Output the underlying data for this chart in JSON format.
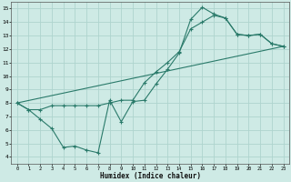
{
  "xlabel": "Humidex (Indice chaleur)",
  "xlim": [
    -0.5,
    23.5
  ],
  "ylim": [
    3.5,
    15.5
  ],
  "xticks": [
    0,
    1,
    2,
    3,
    4,
    5,
    6,
    7,
    8,
    9,
    10,
    11,
    12,
    13,
    14,
    15,
    16,
    17,
    18,
    19,
    20,
    21,
    22,
    23
  ],
  "yticks": [
    4,
    5,
    6,
    7,
    8,
    9,
    10,
    11,
    12,
    13,
    14,
    15
  ],
  "bg_color": "#ceeae5",
  "grid_color": "#aed4ce",
  "line_color": "#2a7a6a",
  "line1_x": [
    0,
    1,
    2,
    3,
    4,
    5,
    6,
    7,
    8,
    9,
    10,
    11,
    12,
    13,
    14,
    15,
    16,
    17,
    18,
    19,
    20,
    21,
    22,
    23
  ],
  "line1_y": [
    8.0,
    7.5,
    6.8,
    6.1,
    4.7,
    4.8,
    4.5,
    4.3,
    8.2,
    6.6,
    8.1,
    8.2,
    9.4,
    10.5,
    11.7,
    14.2,
    15.1,
    14.6,
    14.3,
    13.1,
    13.0,
    13.1,
    12.4,
    12.2
  ],
  "line2_x": [
    0,
    1,
    2,
    3,
    4,
    5,
    6,
    7,
    8,
    9,
    10,
    11,
    12,
    13,
    14,
    15,
    16,
    17,
    18,
    19,
    20,
    21,
    22,
    23
  ],
  "line2_y": [
    8.0,
    7.5,
    7.5,
    7.8,
    7.8,
    7.8,
    7.8,
    7.8,
    8.0,
    8.2,
    8.2,
    9.5,
    10.3,
    11.0,
    11.8,
    13.5,
    14.0,
    14.5,
    14.3,
    13.1,
    13.0,
    13.1,
    12.4,
    12.2
  ],
  "line3_x": [
    0,
    23
  ],
  "line3_y": [
    8.0,
    12.2
  ]
}
